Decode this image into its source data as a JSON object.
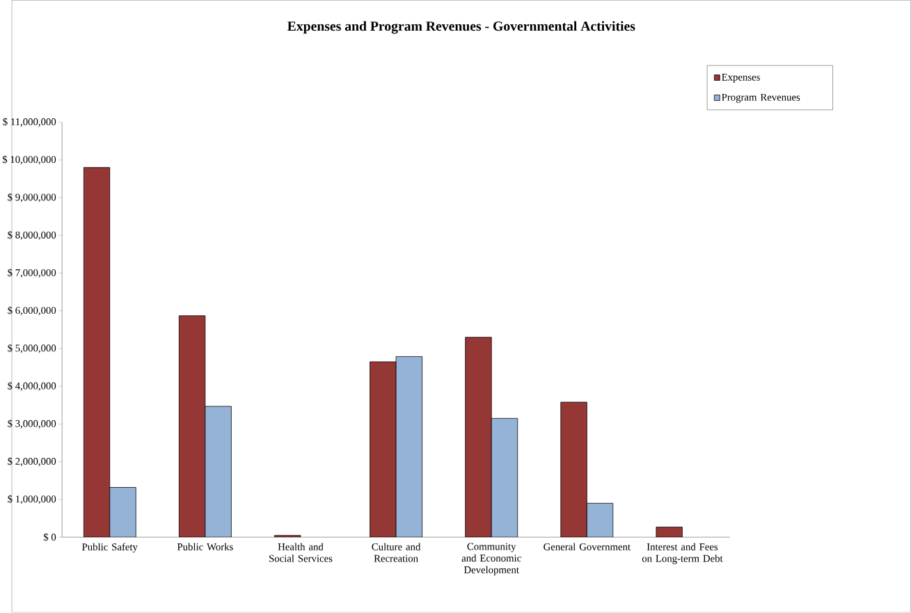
{
  "chart_data": {
    "type": "bar",
    "title": "Expenses and Program Revenues - Governmental Activities",
    "categories": [
      "Public Safety",
      "Public Works",
      "Health and Social Services",
      "Culture and Recreation",
      "Community and Economic Development",
      "General Government",
      "Interest and Fees on Long-term Debt"
    ],
    "series": [
      {
        "name": "Expenses",
        "color": "#953735",
        "values": [
          9800000,
          5870000,
          50000,
          4650000,
          5300000,
          3580000,
          270000
        ]
      },
      {
        "name": "Program Revenues",
        "color": "#95b3d7",
        "values": [
          1320000,
          3470000,
          null,
          4790000,
          3150000,
          900000,
          null
        ]
      }
    ],
    "ylim": [
      0,
      11000000
    ],
    "yticks": [
      {
        "value": 0,
        "label": "$ 0"
      },
      {
        "value": 1000000,
        "label": "$ 1,000,000"
      },
      {
        "value": 2000000,
        "label": "$ 2,000,000"
      },
      {
        "value": 3000000,
        "label": "$ 3,000,000"
      },
      {
        "value": 4000000,
        "label": "$ 4,000,000"
      },
      {
        "value": 5000000,
        "label": "$ 5,000,000"
      },
      {
        "value": 6000000,
        "label": "$ 6,000,000"
      },
      {
        "value": 7000000,
        "label": "$ 7,000,000"
      },
      {
        "value": 8000000,
        "label": "$ 8,000,000"
      },
      {
        "value": 9000000,
        "label": "$ 9,000,000"
      },
      {
        "value": 10000000,
        "label": "$ 10,000,000"
      },
      {
        "value": 11000000,
        "label": "$ 11,000,000"
      }
    ],
    "grid": false,
    "legend": "top right"
  }
}
